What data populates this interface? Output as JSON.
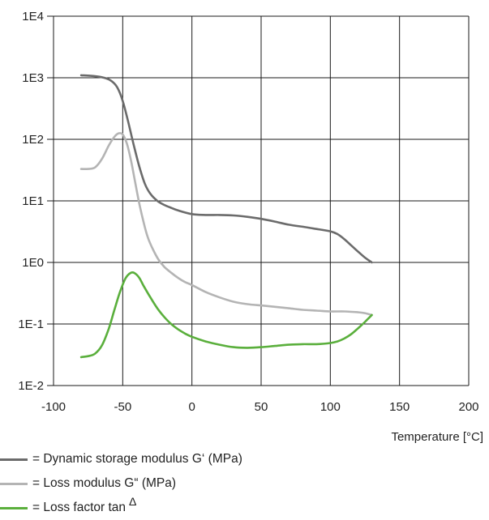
{
  "chart_data": {
    "type": "line",
    "xlabel": "Temperature [°C]",
    "x_ticks": [
      "-100",
      "-50",
      "0",
      "50",
      "100",
      "150",
      "200"
    ],
    "xlim": [
      -100,
      200
    ],
    "y_scale": "log",
    "y_ticks": [
      "1E4",
      "1E3",
      "1E2",
      "1E1",
      "1E0",
      "1E-1",
      "1E-2"
    ],
    "ylim": [
      0.01,
      10000
    ],
    "grid": true,
    "legend_placement": "bottom",
    "series": [
      {
        "name": "Dynamic storage modulus G‘ (MPa)",
        "legend_text": "= Dynamic storage modulus G‘ (MPa)",
        "color": "#6b6b6b",
        "x": [
          -80,
          -70,
          -62,
          -58,
          -54,
          -50,
          -46,
          -42,
          -38,
          -34,
          -30,
          -25,
          -20,
          -15,
          -10,
          0,
          10,
          20,
          30,
          40,
          50,
          60,
          70,
          80,
          90,
          100,
          105,
          110,
          115,
          120,
          125,
          130
        ],
        "y": [
          1100,
          1060,
          980,
          880,
          700,
          420,
          190,
          80,
          36,
          19,
          13,
          10,
          8.6,
          7.7,
          7,
          6.1,
          5.9,
          5.9,
          5.8,
          5.5,
          5.1,
          4.6,
          4.1,
          3.8,
          3.5,
          3.2,
          2.9,
          2.4,
          1.9,
          1.5,
          1.2,
          1.0
        ]
      },
      {
        "name": "Loss modulus  G“ (MPa)",
        "legend_text": "= Loss modulus  G“ (MPa)",
        "color": "#b4b4b4",
        "x": [
          -80,
          -75,
          -70,
          -65,
          -60,
          -56,
          -53,
          -50,
          -47,
          -44,
          -41,
          -38,
          -35,
          -32,
          -28,
          -24,
          -20,
          -15,
          -10,
          -5,
          0,
          10,
          20,
          30,
          40,
          50,
          60,
          70,
          80,
          90,
          100,
          110,
          120,
          125,
          130
        ],
        "y": [
          33,
          33,
          35,
          48,
          80,
          110,
          125,
          120,
          85,
          45,
          20,
          9,
          4.6,
          2.6,
          1.6,
          1.1,
          0.85,
          0.68,
          0.56,
          0.48,
          0.43,
          0.33,
          0.27,
          0.23,
          0.21,
          0.2,
          0.19,
          0.18,
          0.17,
          0.165,
          0.16,
          0.16,
          0.155,
          0.15,
          0.14
        ]
      },
      {
        "name": "Loss factor tan Δ",
        "legend_text": "= Loss factor tan",
        "legend_sup": "Δ",
        "color": "#5aaf3c",
        "x": [
          -80,
          -75,
          -70,
          -65,
          -60,
          -56,
          -52,
          -48,
          -44,
          -41,
          -38,
          -35,
          -30,
          -25,
          -20,
          -15,
          -10,
          -5,
          0,
          10,
          20,
          30,
          40,
          50,
          60,
          70,
          80,
          90,
          100,
          105,
          110,
          115,
          120,
          125,
          130
        ],
        "y": [
          0.029,
          0.03,
          0.033,
          0.045,
          0.085,
          0.17,
          0.33,
          0.55,
          0.68,
          0.66,
          0.56,
          0.42,
          0.27,
          0.18,
          0.13,
          0.1,
          0.082,
          0.07,
          0.062,
          0.052,
          0.046,
          0.042,
          0.041,
          0.042,
          0.044,
          0.046,
          0.047,
          0.047,
          0.049,
          0.052,
          0.058,
          0.068,
          0.085,
          0.108,
          0.14
        ]
      }
    ]
  }
}
